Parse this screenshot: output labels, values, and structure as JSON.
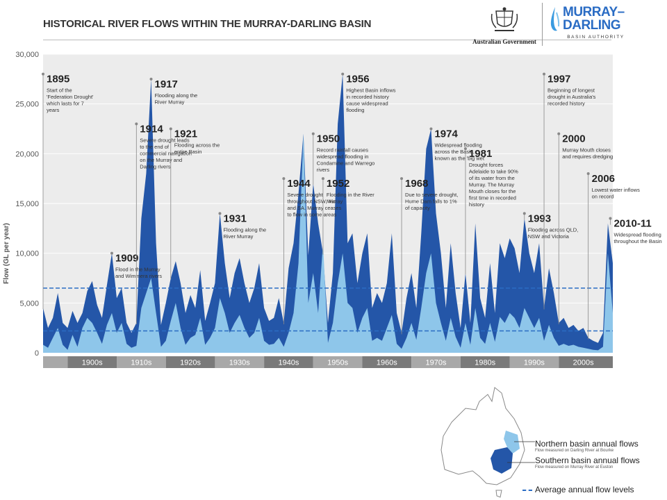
{
  "title": "HISTORICAL RIVER FLOWS WITHIN THE MURRAY-DARLING BASIN",
  "logos": {
    "government": "Australian Government",
    "mdba_line1": "MURRAY–",
    "mdba_line2": "DARLING",
    "mdba_sub": "BASIN AUTHORITY"
  },
  "colors": {
    "southern": "#2456a8",
    "northern": "#8ec6ea",
    "average_line": "#2a6cc4",
    "plot_bg": "#ececec",
    "decade_dark": "#7a7a7a",
    "decade_light": "#a8a8a8"
  },
  "legend": {
    "northern": "Northern basin annual flows",
    "northern_sub": "Flow measured on Darling River at Bourke",
    "southern": "Southern basin annual flows",
    "southern_sub": "Flow measured on Murray River at Euston",
    "average": "Average annual flow levels"
  },
  "chart_data": {
    "type": "area",
    "ylabel": "Flow (GL per year)",
    "ylim": [
      0,
      30000
    ],
    "y_ticks": [
      "0",
      "5,000",
      "10,000",
      "15,000",
      "20,000",
      "25,000",
      "30,000"
    ],
    "xlim": [
      1895,
      2011
    ],
    "decades": [
      "1900s",
      "1910s",
      "1920s",
      "1930s",
      "1940s",
      "1950s",
      "1960s",
      "1970s",
      "1980s",
      "1990s",
      "2000s"
    ],
    "averages": {
      "southern": 6500,
      "northern": 2200
    },
    "series": [
      {
        "key": "southern",
        "name": "Southern basin annual flows",
        "x": [
          1895,
          1896,
          1897,
          1898,
          1899,
          1900,
          1901,
          1902,
          1903,
          1904,
          1905,
          1906,
          1907,
          1908,
          1909,
          1910,
          1911,
          1912,
          1913,
          1914,
          1915,
          1916,
          1917,
          1918,
          1919,
          1920,
          1921,
          1922,
          1923,
          1924,
          1925,
          1926,
          1927,
          1928,
          1929,
          1930,
          1931,
          1932,
          1933,
          1934,
          1935,
          1936,
          1937,
          1938,
          1939,
          1940,
          1941,
          1942,
          1943,
          1944,
          1945,
          1946,
          1947,
          1948,
          1949,
          1950,
          1951,
          1952,
          1953,
          1954,
          1955,
          1956,
          1957,
          1958,
          1959,
          1960,
          1961,
          1962,
          1963,
          1964,
          1965,
          1966,
          1967,
          1968,
          1969,
          1970,
          1971,
          1972,
          1973,
          1974,
          1975,
          1976,
          1977,
          1978,
          1979,
          1980,
          1981,
          1982,
          1983,
          1984,
          1985,
          1986,
          1987,
          1988,
          1989,
          1990,
          1991,
          1992,
          1993,
          1994,
          1995,
          1996,
          1997,
          1998,
          1999,
          2000,
          2001,
          2002,
          2003,
          2004,
          2005,
          2006,
          2007,
          2008,
          2009,
          2010,
          2011
        ],
        "values": [
          4500,
          2500,
          3500,
          6000,
          3000,
          2500,
          4200,
          3000,
          4000,
          6200,
          7200,
          4800,
          3500,
          6800,
          10000,
          5500,
          6500,
          3000,
          2000,
          3000,
          13500,
          18000,
          27500,
          11000,
          2800,
          5000,
          7500,
          9200,
          7000,
          4000,
          5800,
          4500,
          8300,
          3200,
          5000,
          7000,
          14000,
          9000,
          5500,
          8000,
          9500,
          7000,
          5000,
          6500,
          9000,
          4500,
          3200,
          3500,
          5500,
          3000,
          8500,
          11000,
          16000,
          22000,
          9800,
          17000,
          13000,
          10000,
          3000,
          8000,
          23000,
          28000,
          11000,
          12000,
          7000,
          10000,
          12000,
          4500,
          6000,
          5000,
          7000,
          12000,
          4000,
          2000,
          5500,
          8000,
          4500,
          12000,
          20500,
          22500,
          14000,
          10000,
          4500,
          11000,
          6000,
          2500,
          8000,
          3000,
          13000,
          5500,
          3500,
          9000,
          4000,
          11000,
          9500,
          11500,
          10500,
          8000,
          13500,
          10000,
          8000,
          11000,
          4500,
          8500,
          6000,
          3000,
          3500,
          2500,
          2800,
          2200,
          2500,
          1500,
          1200,
          1000,
          2000,
          13000,
          9000
        ]
      },
      {
        "key": "northern",
        "name": "Northern basin annual flows",
        "x": [
          1895,
          1896,
          1897,
          1898,
          1899,
          1900,
          1901,
          1902,
          1903,
          1904,
          1905,
          1906,
          1907,
          1908,
          1909,
          1910,
          1911,
          1912,
          1913,
          1914,
          1915,
          1916,
          1917,
          1918,
          1919,
          1920,
          1921,
          1922,
          1923,
          1924,
          1925,
          1926,
          1927,
          1928,
          1929,
          1930,
          1931,
          1932,
          1933,
          1934,
          1935,
          1936,
          1937,
          1938,
          1939,
          1940,
          1941,
          1942,
          1943,
          1944,
          1945,
          1946,
          1947,
          1948,
          1949,
          1950,
          1951,
          1952,
          1953,
          1954,
          1955,
          1956,
          1957,
          1958,
          1959,
          1960,
          1961,
          1962,
          1963,
          1964,
          1965,
          1966,
          1967,
          1968,
          1969,
          1970,
          1971,
          1972,
          1973,
          1974,
          1975,
          1976,
          1977,
          1978,
          1979,
          1980,
          1981,
          1982,
          1983,
          1984,
          1985,
          1986,
          1987,
          1988,
          1989,
          1990,
          1991,
          1992,
          1993,
          1994,
          1995,
          1996,
          1997,
          1998,
          1999,
          2000,
          2001,
          2002,
          2003,
          2004,
          2005,
          2006,
          2007,
          2008,
          2009,
          2010,
          2011
        ],
        "values": [
          800,
          500,
          1500,
          2500,
          800,
          300,
          1800,
          600,
          2500,
          3500,
          3000,
          2000,
          900,
          2800,
          4000,
          2000,
          3000,
          900,
          500,
          700,
          4500,
          6000,
          7500,
          4000,
          600,
          1200,
          3200,
          5000,
          2500,
          800,
          1500,
          1800,
          3500,
          800,
          1500,
          2500,
          5500,
          4000,
          2000,
          3000,
          3800,
          2500,
          1500,
          2000,
          3500,
          1200,
          800,
          900,
          1500,
          600,
          2000,
          4000,
          9000,
          22000,
          5000,
          8000,
          4000,
          11000,
          1000,
          3000,
          7000,
          10000,
          5000,
          4500,
          2000,
          3500,
          4500,
          1200,
          1500,
          1200,
          2500,
          3800,
          900,
          400,
          1500,
          3000,
          1300,
          4500,
          8000,
          10000,
          5000,
          3000,
          1200,
          3500,
          1600,
          500,
          3000,
          800,
          4500,
          1500,
          900,
          3000,
          1100,
          3600,
          3000,
          4000,
          3500,
          2500,
          4500,
          3500,
          2500,
          3500,
          1200,
          2800,
          1500,
          700,
          900,
          700,
          800,
          600,
          500,
          400,
          300,
          250,
          600,
          10000,
          4000
        ]
      }
    ],
    "annotations": [
      {
        "year": "1895",
        "value": 28000,
        "text": "Start of the 'Federation Drought' which lasts for 7 years"
      },
      {
        "year": "1909",
        "value": 10000,
        "text": "Flood in the Murray and Wimmera rivers"
      },
      {
        "year": "1914",
        "value": 23000,
        "text": "Severe drought leads to the end of commercial navigation on the Murray and Darling rivers"
      },
      {
        "year": "1917",
        "value": 27500,
        "text": "Flooding along the River Murray"
      },
      {
        "year": "1921",
        "value": 22500,
        "text": "Flooding across the entire Basin"
      },
      {
        "year": "1931",
        "value": 14000,
        "text": "Flooding along the River Murray"
      },
      {
        "year": "1944",
        "value": 17500,
        "text": "Severe drought throughout NSW, Vic and SA. Murray ceases to flow in some areas"
      },
      {
        "year": "1950",
        "value": 22000,
        "text": "Record rainfall causes widespread flooding in Condamine and Warrego rivers"
      },
      {
        "year": "1952",
        "value": 17500,
        "text": "Flooding in the River Murray"
      },
      {
        "year": "1956",
        "value": 28000,
        "text": "Highest Basin inflows in recorded history cause widespread flooding"
      },
      {
        "year": "1968",
        "value": 17500,
        "text": "Due to severe drought, Hume Dam falls to 1% of capacity"
      },
      {
        "year": "1974",
        "value": 22500,
        "text": "Widespread flooding across the Basin, known as the 'big wet'"
      },
      {
        "year": "1981",
        "value": 20500,
        "text": "Drought forces Adelaide to take 90% of its water from the Murray. The Murray Mouth closes for the first time in recorded history"
      },
      {
        "year": "1993",
        "value": 14000,
        "text": "Flooding across QLD, NSW and Victoria"
      },
      {
        "year": "1997",
        "value": 28000,
        "text": "Beginning of longest drought in Australia's recorded history"
      },
      {
        "year": "2000",
        "value": 22000,
        "text": "Murray Mouth closes and requires dredging"
      },
      {
        "year": "2006",
        "value": 18000,
        "text": "Lowest water inflows on record"
      },
      {
        "year": "2010-11",
        "value": 13500,
        "text": "Widespread flooding throughout the Basin"
      }
    ]
  }
}
